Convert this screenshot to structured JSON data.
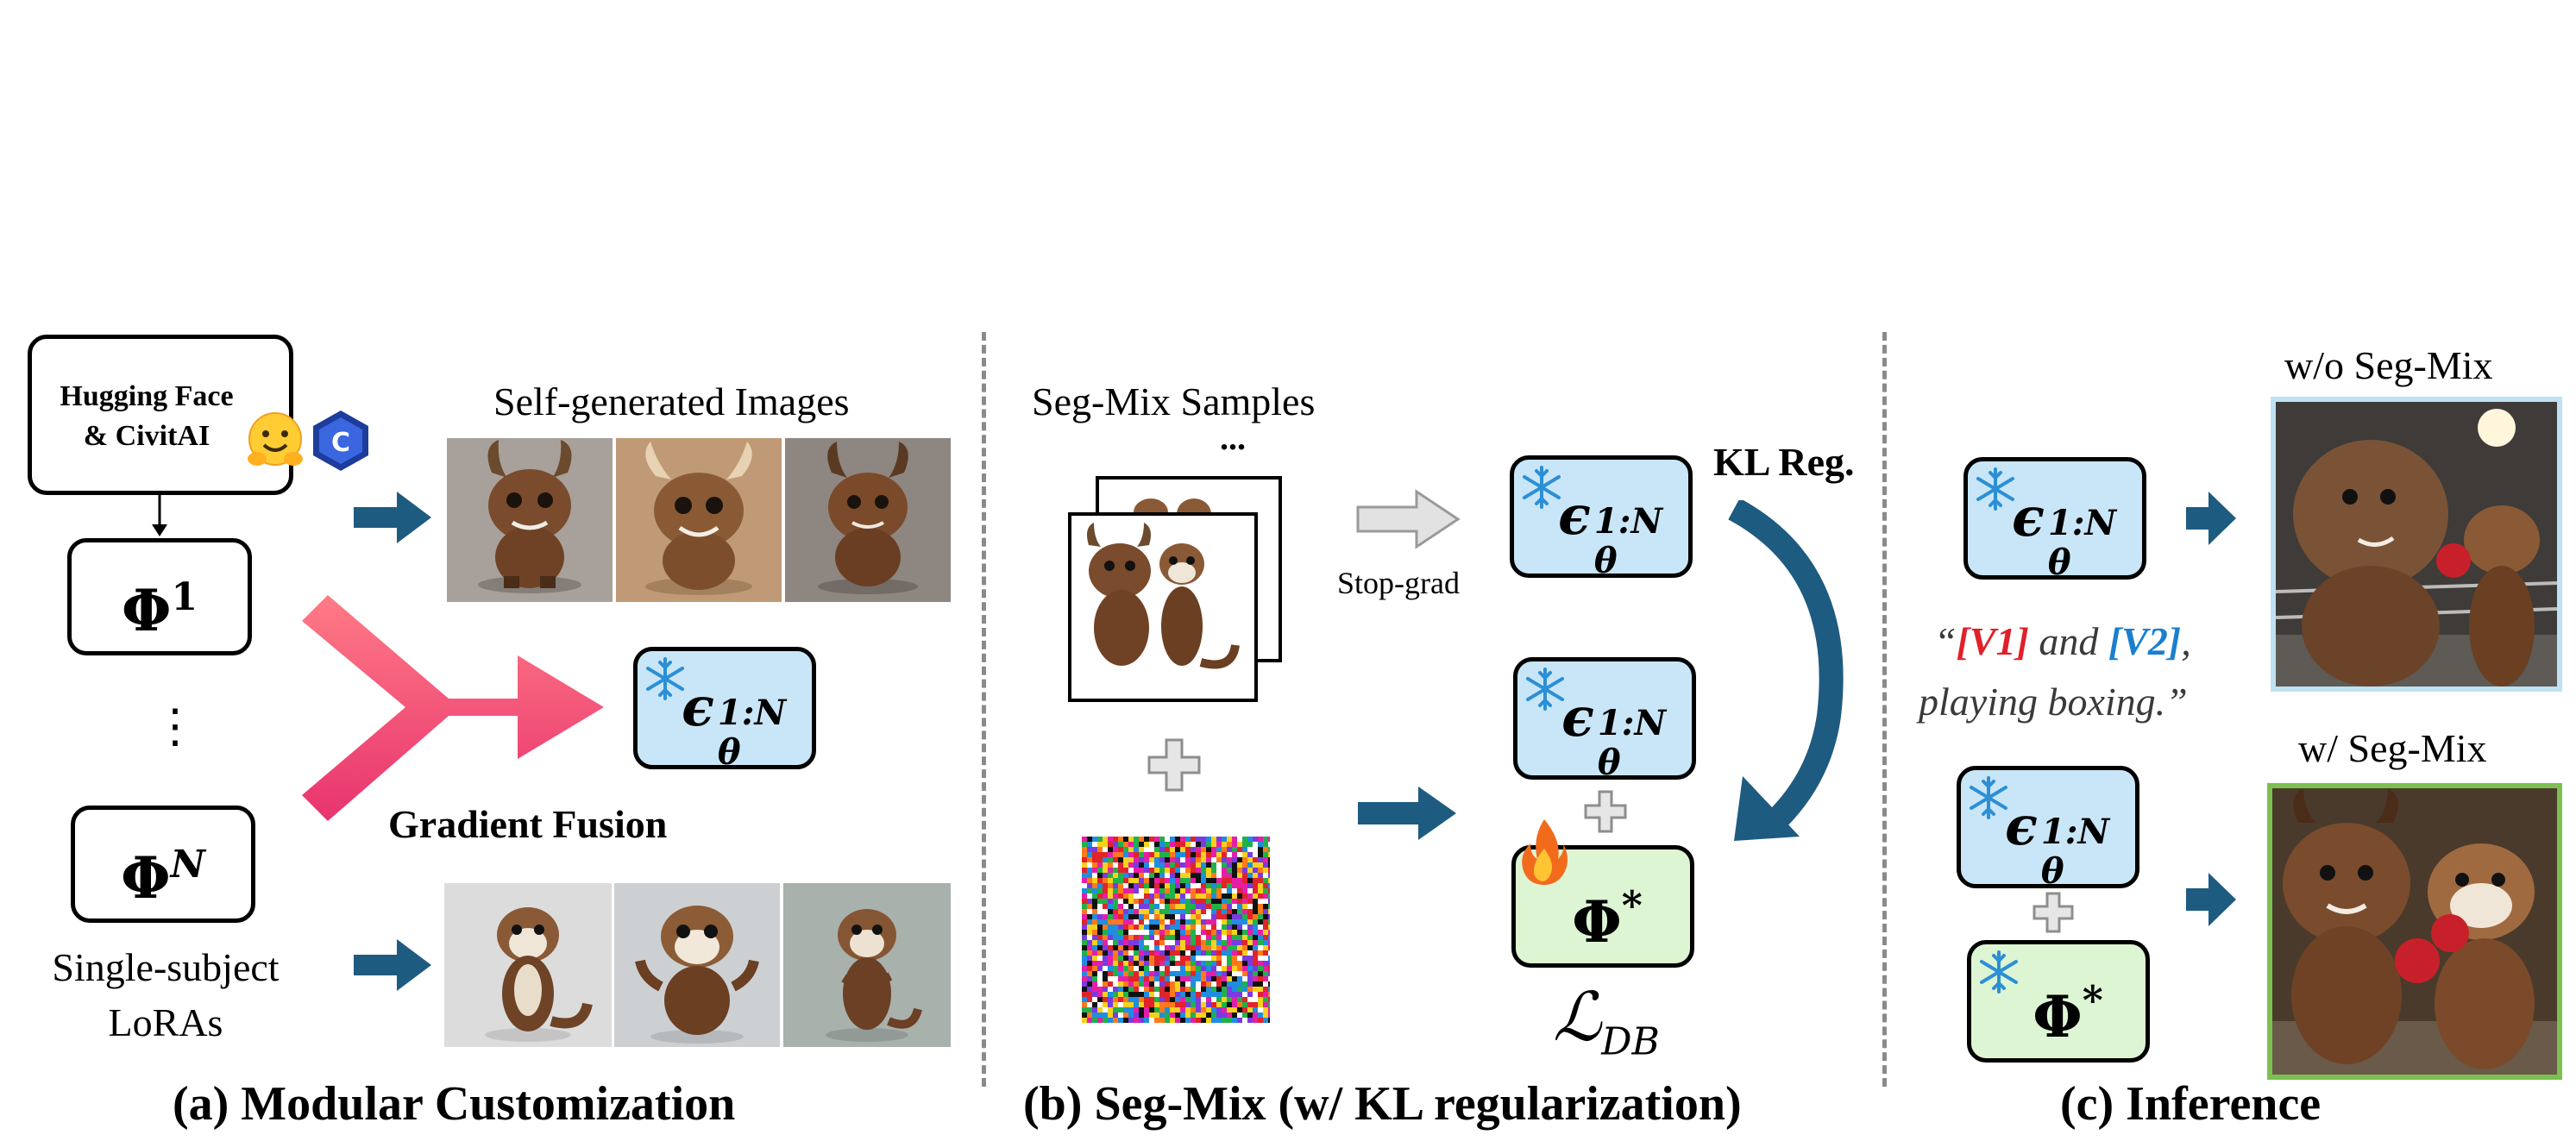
{
  "panel_a": {
    "source_label": "Hugging Face\n& CivitAI",
    "phi_top": "Φ",
    "phi_top_sup": "1",
    "dots": "⋮",
    "phi_bottom": "Φ",
    "phi_bottom_sup": "N",
    "loras_label": "Single-subject\nLoRAs",
    "images_label": "Self-generated Images",
    "fusion_label": "Gradient Fusion",
    "caption": "(a) Modular Customization"
  },
  "panel_b": {
    "samples_label": "Seg-Mix Samples",
    "ellipsis": "...",
    "stopgrad_label": "Stop-grad",
    "kl_label": "KL Reg.",
    "loss_label": "ℒ",
    "loss_sub": "DB",
    "caption": "(b) Seg-Mix (w/ KL regularization)"
  },
  "panel_c": {
    "prompt_line1_open": "“",
    "prompt_v1": "[V1]",
    "prompt_mid": " and ",
    "prompt_v2": "[V2]",
    "prompt_line1_close": ",",
    "prompt_line2": "playing boxing.”",
    "without_label": "w/o Seg-Mix",
    "with_label": "w/ Seg-Mix",
    "caption": "(c) Inference"
  },
  "model": {
    "eps": "ϵ",
    "eps_sub": "θ",
    "eps_sup": "1:N",
    "phi_star": "Φ",
    "phi_star_sup": "*"
  },
  "colors": {
    "frozen_fill": "#c8e6f7",
    "trainable_fill": "#ddf5d3",
    "arrow_dark": "#1e5b80",
    "fusion_pink": "#f24d6a",
    "v1_red": "#e0202a",
    "v2_blue": "#1a7fcf",
    "prompt_gray": "#3a3a3a",
    "without_border": "#bfe2f2",
    "with_border": "#7cc050"
  },
  "icons": [
    "snowflake-icon",
    "fire-icon",
    "huggingface-icon",
    "civitai-icon",
    "plus-icon"
  ]
}
